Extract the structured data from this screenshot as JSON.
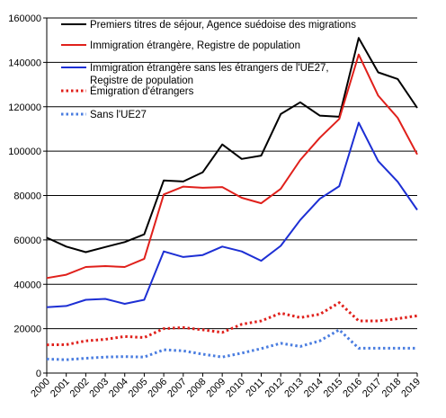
{
  "chart_data": {
    "type": "line",
    "title": "",
    "xlabel": "",
    "ylabel": "",
    "ylim": [
      0,
      160000
    ],
    "y_ticks": [
      0,
      20000,
      40000,
      60000,
      80000,
      100000,
      120000,
      140000,
      160000
    ],
    "y_tick_labels": [
      "0",
      "20000",
      "40000",
      "60000",
      "80000",
      "100000",
      "120000",
      "140000",
      "160000"
    ],
    "grid": "horizontal",
    "legend_position": "top-left",
    "categories": [
      "2000",
      "2001",
      "2002",
      "2003",
      "2004",
      "2005",
      "2006",
      "2007",
      "2008",
      "2009",
      "2010",
      "2011",
      "2012",
      "2013",
      "2014",
      "2015",
      "2016",
      "2017",
      "2018",
      "2019"
    ],
    "series": [
      {
        "name": "Premiers titres de séjour, Agence suédoise des migrations",
        "color": "#000000",
        "style": "solid",
        "values": [
          61000,
          57000,
          54500,
          56800,
          59000,
          62500,
          86800,
          86300,
          90500,
          103000,
          96500,
          98000,
          116700,
          122000,
          116000,
          115500,
          151000,
          135500,
          132500,
          119500
        ]
      },
      {
        "name": "Immigration étrangère, Registre de population",
        "color": "#e0201b",
        "style": "solid",
        "values": [
          42800,
          44300,
          47800,
          48200,
          47800,
          51500,
          80500,
          84000,
          83500,
          83800,
          79000,
          76500,
          83000,
          96000,
          106000,
          114500,
          143500,
          125000,
          115000,
          98500
        ]
      },
      {
        "name": "Immigration étrangère sans les étrangers de l'UE27, Registre de population",
        "legend_lines": [
          "Immigration étrangère sans les étrangers de l'UE27,",
          "Registre de population"
        ],
        "color": "#1d2fd4",
        "style": "solid",
        "values": [
          29700,
          30200,
          33000,
          33400,
          31200,
          33000,
          54800,
          52300,
          53200,
          57000,
          54800,
          50600,
          57300,
          69000,
          78500,
          84200,
          112800,
          95500,
          86200,
          73500
        ]
      },
      {
        "name": "Émigration d'étrangers",
        "color": "#e0201b",
        "style": "dotted",
        "values": [
          12700,
          12800,
          14500,
          15200,
          16500,
          16000,
          20000,
          20500,
          19500,
          18300,
          22000,
          23500,
          27000,
          25000,
          26500,
          31700,
          23500,
          23500,
          24500,
          25800
        ]
      },
      {
        "name": "Sans  l'UE27",
        "color": "#4a7de0",
        "style": "dotted",
        "values": [
          6300,
          6000,
          6700,
          7200,
          7400,
          7200,
          10500,
          10000,
          8500,
          7200,
          9000,
          11000,
          13400,
          12000,
          14500,
          19500,
          11200,
          11200,
          11200,
          11200
        ]
      }
    ]
  }
}
